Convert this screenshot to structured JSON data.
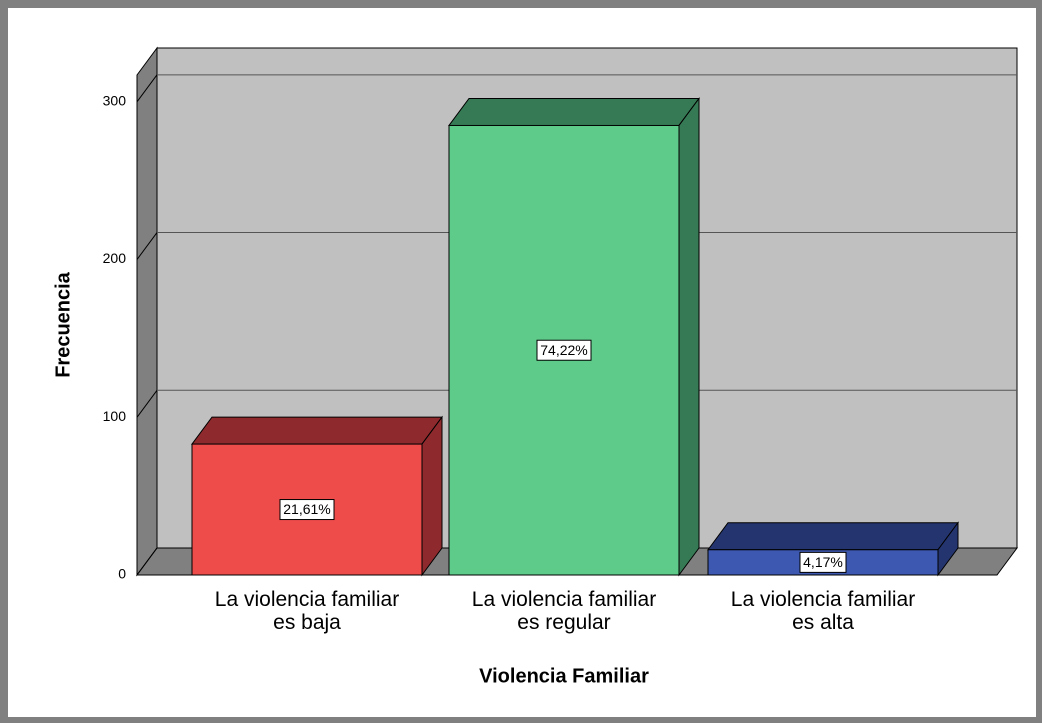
{
  "chart_data": {
    "type": "bar3d",
    "x_label": "Violencia Familiar",
    "y_label": "Frecuencia",
    "categories": [
      "La violencia familiar\nes baja",
      "La violencia familiar\nes regular",
      "La violencia familiar\nes alta"
    ],
    "values": [
      83,
      285,
      16
    ],
    "percent_labels": [
      "21,61%",
      "74,22%",
      "4,17%"
    ],
    "colors": [
      "#ee4b4b",
      "#5ecb8b",
      "#3d58b0"
    ],
    "side_colors": [
      "#8e2a2d",
      "#367a55",
      "#24346e"
    ],
    "ylim": [
      0,
      317
    ],
    "yticks": [
      0,
      100,
      200,
      300
    ],
    "grid": true
  }
}
